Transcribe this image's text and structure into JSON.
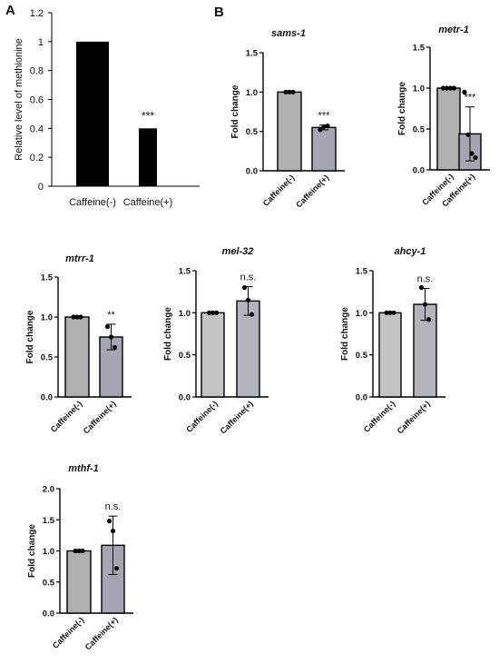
{
  "panels": {
    "a": "A",
    "b": "B"
  },
  "chart_data": [
    {
      "id": "A",
      "type": "bar",
      "title": "",
      "xlabel": "",
      "ylabel": "Relative level of methionine",
      "ylim": [
        0,
        1.2
      ],
      "yticks": [
        0,
        0.2,
        0.4,
        0.6,
        0.8,
        1,
        1.2
      ],
      "categories": [
        "Caffeine(-)",
        "Caffeine(+)"
      ],
      "values": [
        1.0,
        0.4
      ],
      "significance": [
        "",
        "***"
      ],
      "colors": [
        "#000000",
        "#000000"
      ]
    },
    {
      "id": "sams-1",
      "type": "bar",
      "title": "sams-1",
      "ylabel": "Fold change",
      "ylim": [
        0,
        1.5
      ],
      "yticks": [
        "0.0",
        "0.5",
        "1.0",
        "1.5"
      ],
      "categories": [
        "Caffeine(-)",
        "Caffeine(+)"
      ],
      "values": [
        1.0,
        0.55
      ],
      "errors": [
        0,
        0.03
      ],
      "points": [
        [
          1.0,
          1.0,
          1.0
        ],
        [
          0.52,
          0.56,
          0.57
        ]
      ],
      "significance": [
        "",
        "***"
      ],
      "colors": [
        "#b0b0b0",
        "#a6a6b2"
      ]
    },
    {
      "id": "metr-1",
      "type": "bar",
      "title": "metr-1",
      "ylabel": "Fold change",
      "ylim": [
        0,
        1.5
      ],
      "yticks": [
        "0.0",
        "0.5",
        "1.0",
        "1.5"
      ],
      "categories": [
        "Caffeine(-)",
        "Caffeine(+)"
      ],
      "values": [
        1.0,
        0.44
      ],
      "errors": [
        0,
        0.33
      ],
      "points": [
        [
          1.0,
          1.0,
          1.0,
          1.0
        ],
        [
          0.95,
          0.43,
          0.2,
          0.15
        ]
      ],
      "significance": [
        "",
        "***"
      ],
      "colors": [
        "#b0b0b0",
        "#a6a6b2"
      ]
    },
    {
      "id": "mtrr-1",
      "type": "bar",
      "title": "mtrr-1",
      "ylabel": "Fold change",
      "ylim": [
        0,
        1.5
      ],
      "yticks": [
        "0.0",
        "0.5",
        "1.0",
        "1.5"
      ],
      "categories": [
        "Caffeine(-)",
        "Caffeine(+)"
      ],
      "values": [
        1.0,
        0.75
      ],
      "errors": [
        0,
        0.16
      ],
      "points": [
        [
          1.0,
          1.0,
          1.0
        ],
        [
          0.88,
          0.75,
          0.62
        ]
      ],
      "significance": [
        "",
        "**"
      ],
      "colors": [
        "#b0b0b0",
        "#a6a6b2"
      ]
    },
    {
      "id": "mel-32",
      "type": "bar",
      "title": "mel-32",
      "ylabel": "Fold change",
      "ylim": [
        0,
        1.5
      ],
      "yticks": [
        "0.0",
        "0.5",
        "1.0",
        "1.5"
      ],
      "categories": [
        "Caffeine(-)",
        "Caffeine(+)"
      ],
      "values": [
        1.0,
        1.14
      ],
      "errors": [
        0,
        0.17
      ],
      "points": [
        [
          1.0,
          1.0,
          1.0
        ],
        [
          1.3,
          1.15,
          0.98
        ]
      ],
      "significance": [
        "",
        "n.s."
      ],
      "colors": [
        "#c4c4c4",
        "#b4b4bc"
      ]
    },
    {
      "id": "ahcy-1",
      "type": "bar",
      "title": "ahcy-1",
      "ylabel": "Fold change",
      "ylim": [
        0,
        1.5
      ],
      "yticks": [
        "0.0",
        "0.5",
        "1.0",
        "1.5"
      ],
      "categories": [
        "Caffeine(-)",
        "Caffeine(+)"
      ],
      "values": [
        1.0,
        1.1
      ],
      "errors": [
        0,
        0.19
      ],
      "points": [
        [
          1.0,
          1.0,
          1.0
        ],
        [
          1.3,
          1.1,
          0.92
        ]
      ],
      "significance": [
        "",
        "n.s."
      ],
      "colors": [
        "#c4c4c4",
        "#b4b4bc"
      ]
    },
    {
      "id": "mthf-1",
      "type": "bar",
      "title": "mthf-1",
      "ylabel": "Fold change",
      "ylim": [
        0,
        2.0
      ],
      "yticks": [
        "0.0",
        "0.5",
        "1.0",
        "1.5",
        "2.0"
      ],
      "categories": [
        "Caffeine(-)",
        "Caffeine(+)"
      ],
      "values": [
        1.0,
        1.09
      ],
      "errors": [
        0,
        0.47
      ],
      "points": [
        [
          1.0,
          1.0,
          1.0
        ],
        [
          1.48,
          1.32,
          0.72
        ]
      ],
      "significance": [
        "",
        "n.s."
      ],
      "colors": [
        "#b0b0b0",
        "#a6a6b2"
      ]
    }
  ]
}
